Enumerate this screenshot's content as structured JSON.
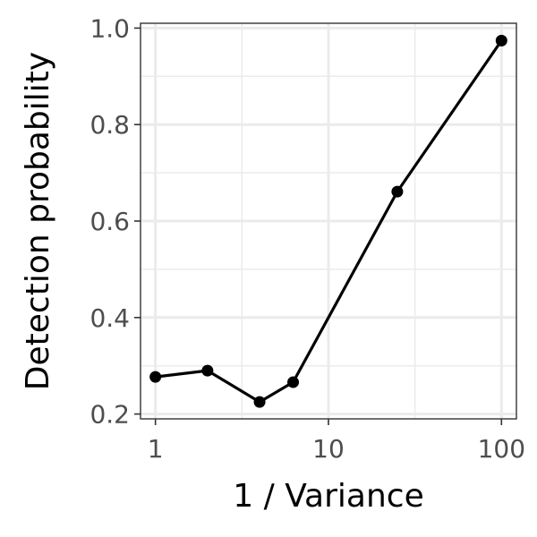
{
  "chart_data": {
    "type": "line",
    "title": "",
    "xlabel": "1 / Variance",
    "ylabel": "Detection probability",
    "x_scale": "log10",
    "xlim": [
      0.82,
      122
    ],
    "ylim": [
      0.19,
      1.01
    ],
    "x_ticks": [
      {
        "value": 1,
        "label": "1"
      },
      {
        "value": 10,
        "label": "10"
      },
      {
        "value": 100,
        "label": "100"
      }
    ],
    "x_minor_ticks": [
      3.1623,
      31.623
    ],
    "y_ticks": [
      {
        "value": 0.2,
        "label": "0.2"
      },
      {
        "value": 0.4,
        "label": "0.4"
      },
      {
        "value": 0.6,
        "label": "0.6"
      },
      {
        "value": 0.8,
        "label": "0.8"
      },
      {
        "value": 1.0,
        "label": "1.0"
      }
    ],
    "y_minor_ticks": [
      0.3,
      0.5,
      0.7,
      0.9
    ],
    "grid": true,
    "legend": "none",
    "series": [
      {
        "x": [
          1,
          2,
          4,
          6.25,
          25,
          100
        ],
        "y": [
          0.277,
          0.29,
          0.225,
          0.266,
          0.661,
          0.974
        ],
        "color": "#000000"
      }
    ]
  }
}
